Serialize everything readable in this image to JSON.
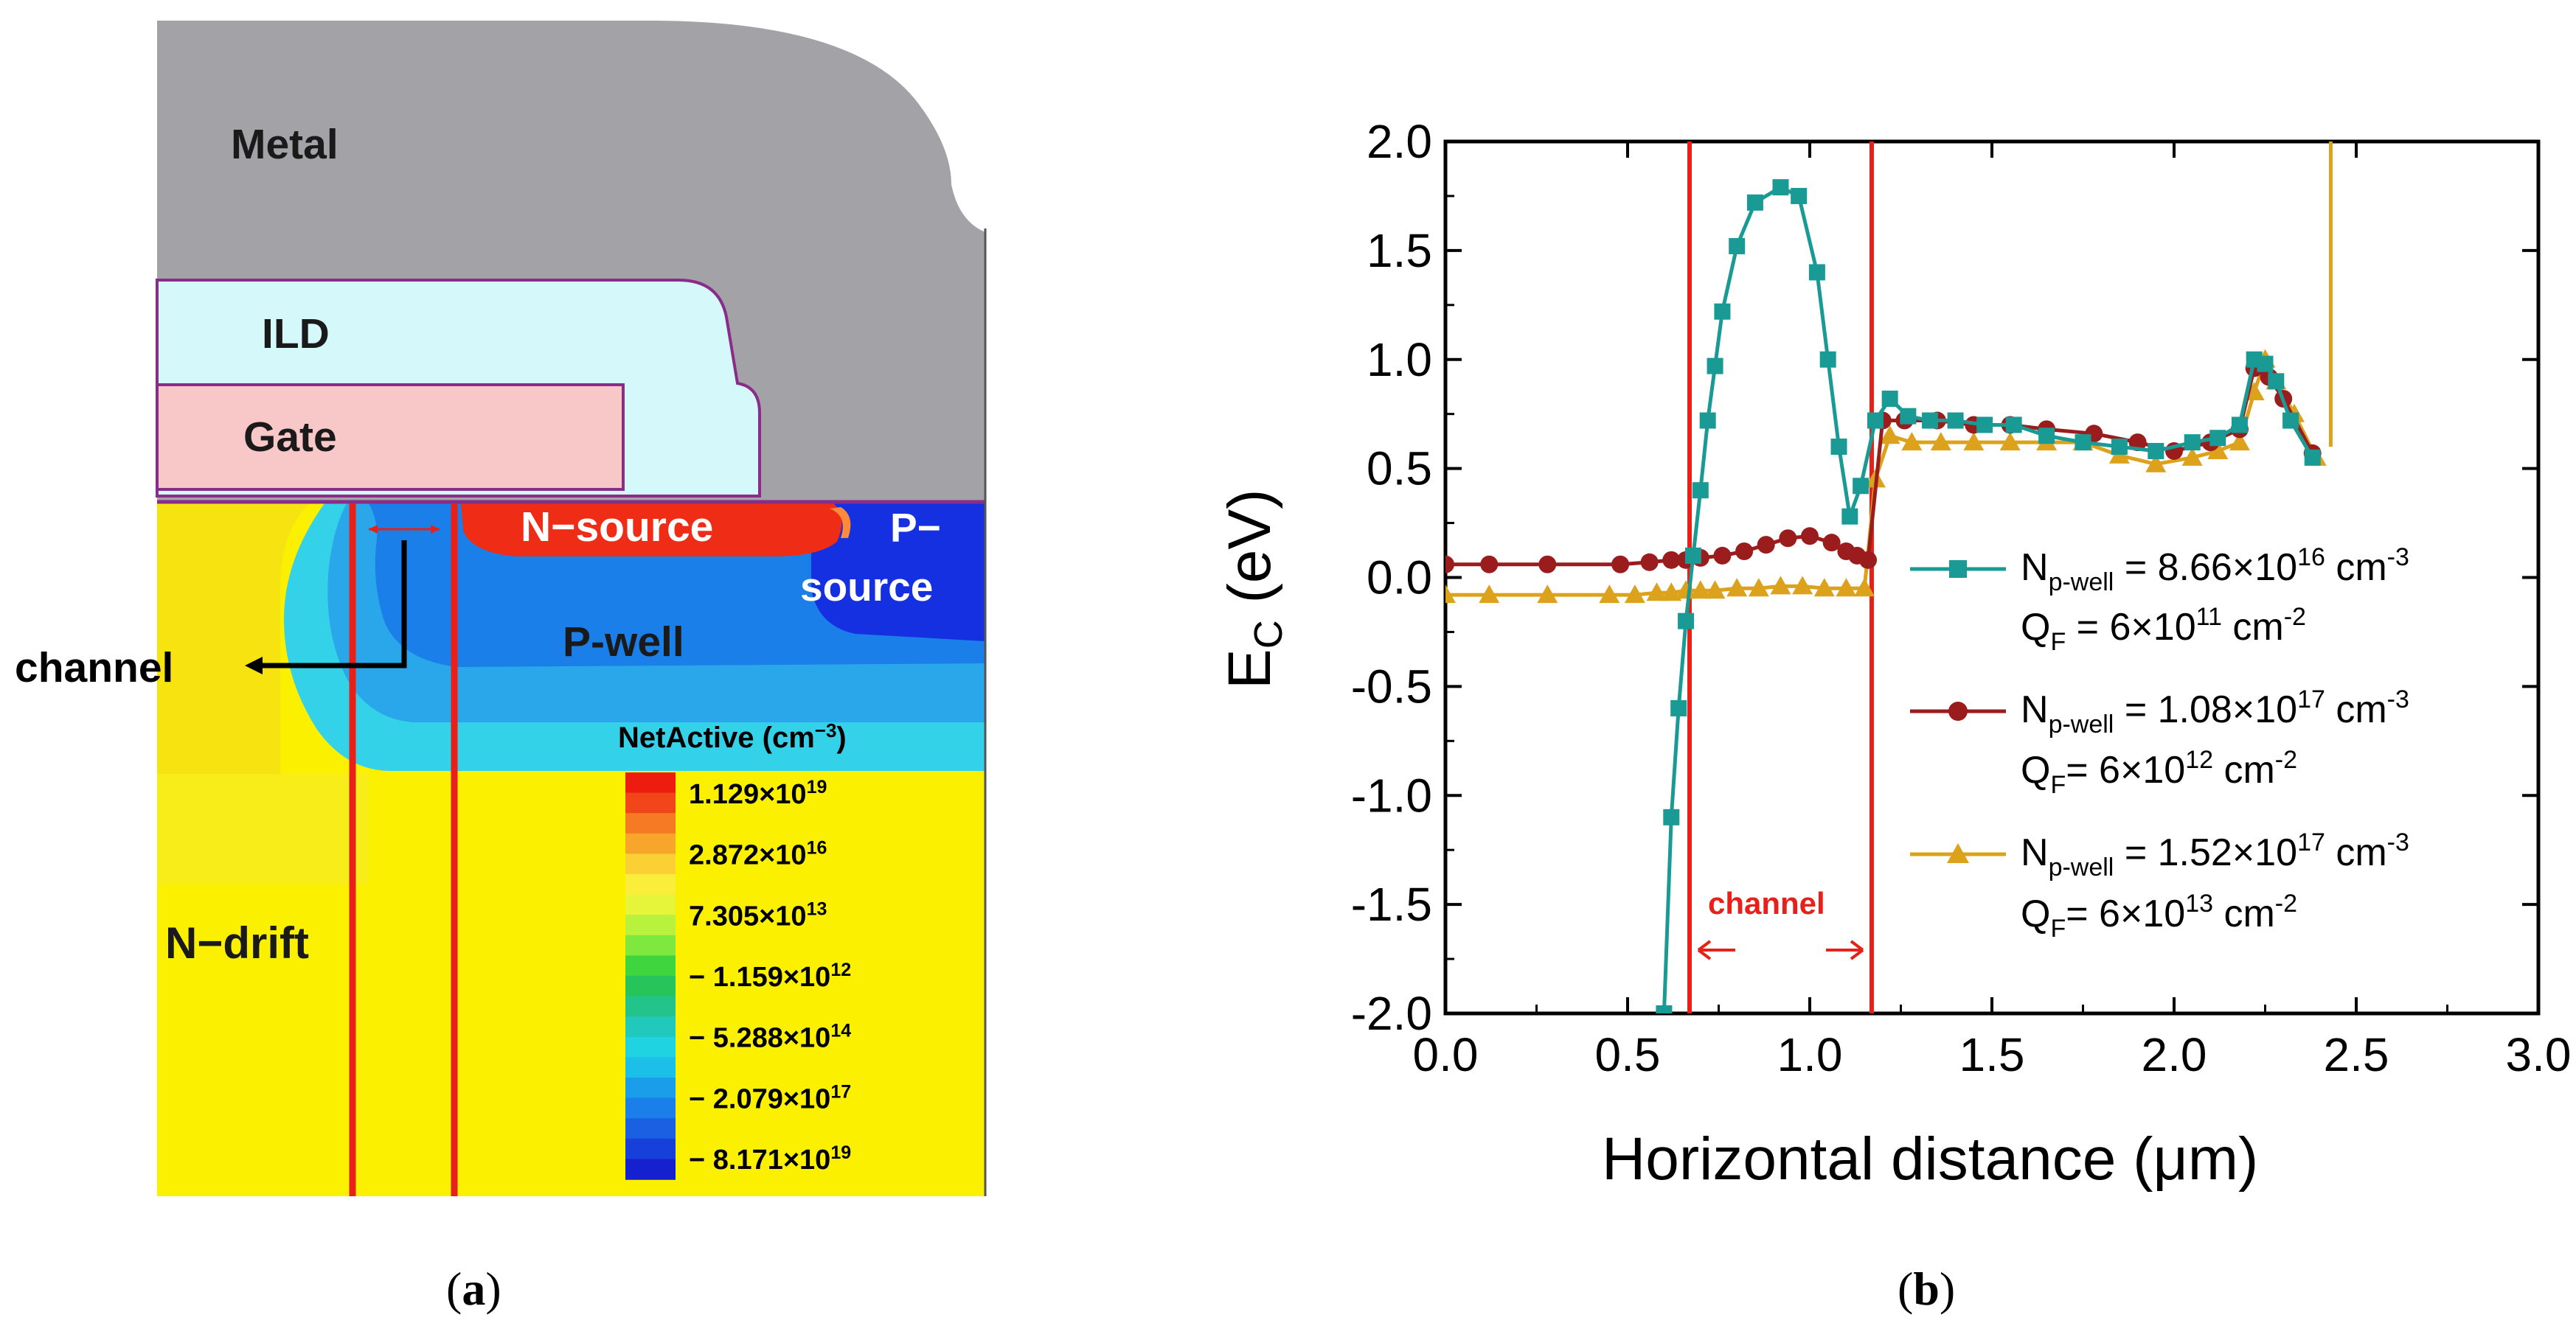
{
  "panel_a": {
    "regions": {
      "metal": "Metal",
      "ild": "ILD",
      "gate": "Gate",
      "n_source": "N−source",
      "p_source_1": "P−",
      "p_source_2": "source",
      "p_well": "P-well",
      "n_drift": "N−drift",
      "channel": "channel"
    },
    "legend_title": "NetActive (cm",
    "legend_title_exp": "−3",
    "legend_title_close": ")",
    "scale": [
      {
        "sign": "",
        "mant": "1.129×10",
        "exp": "19"
      },
      {
        "sign": "",
        "mant": "2.872×10",
        "exp": "16"
      },
      {
        "sign": "",
        "mant": "7.305×10",
        "exp": "13"
      },
      {
        "sign": "−",
        "mant": "1.159×10",
        "exp": "12"
      },
      {
        "sign": "−",
        "mant": "5.288×10",
        "exp": "14"
      },
      {
        "sign": "−",
        "mant": "2.079×10",
        "exp": "17"
      },
      {
        "sign": "−",
        "mant": "8.171×10",
        "exp": "19"
      }
    ],
    "caption_open": "(",
    "caption_letter": "a",
    "caption_close": ")",
    "colors": {
      "metal": "#a3a3a7",
      "ild": "#d5f9fa",
      "gate": "#f8c7c7",
      "drift": "#fbf000",
      "pwell": "#1a7fe8",
      "nsource": "#ef2d16",
      "channel_line": "#e8201a"
    }
  },
  "chart_data": {
    "type": "line",
    "title": "",
    "xlabel": "Horizontal distance (μm)",
    "ylabel_main": "E",
    "ylabel_sub": "C",
    "ylabel_unit": " (eV)",
    "xlim": [
      0.0,
      3.0
    ],
    "ylim": [
      -2.0,
      2.0
    ],
    "xticks": [
      "0.0",
      "0.5",
      "1.0",
      "1.5",
      "2.0",
      "2.5",
      "3.0"
    ],
    "yticks": [
      "2.0",
      "1.5",
      "1.0",
      "0.5",
      "0.0",
      "-0.5",
      "-1.0",
      "-1.5",
      "-2.0"
    ],
    "xtick_values": [
      0.0,
      0.5,
      1.0,
      1.5,
      2.0,
      2.5,
      3.0
    ],
    "ytick_values": [
      2.0,
      1.5,
      1.0,
      0.5,
      0.0,
      -0.5,
      -1.0,
      -1.5,
      -2.0
    ],
    "channel_bounds": [
      0.67,
      1.17
    ],
    "channel_label": "channel",
    "legend_position": "right",
    "series": [
      {
        "legend_n": "N",
        "legend_n_sub": "p-well",
        "legend_n_val": " = 8.66×10",
        "legend_n_exp": "16",
        "legend_n_unit": " cm",
        "legend_n_unit_exp": "-3",
        "legend_q": "Q",
        "legend_q_sub": "F",
        "legend_q_val": " = 6×10",
        "legend_q_exp": "11",
        "legend_q_unit": " cm",
        "legend_q_unit_exp": "-2",
        "color": "#1a9a94",
        "marker": "square",
        "x": [
          0.6,
          0.62,
          0.64,
          0.66,
          0.68,
          0.7,
          0.72,
          0.74,
          0.76,
          0.8,
          0.85,
          0.92,
          0.97,
          1.02,
          1.05,
          1.08,
          1.11,
          1.14,
          1.18,
          1.22,
          1.27,
          1.33,
          1.4,
          1.48,
          1.56,
          1.65,
          1.75,
          1.85,
          1.95,
          2.05,
          2.12,
          2.18,
          2.22,
          2.25,
          2.28,
          2.32,
          2.38
        ],
        "y": [
          -2.0,
          -1.1,
          -0.6,
          -0.2,
          0.1,
          0.4,
          0.72,
          0.97,
          1.22,
          1.52,
          1.72,
          1.79,
          1.75,
          1.4,
          1.0,
          0.6,
          0.28,
          0.42,
          0.72,
          0.82,
          0.74,
          0.72,
          0.72,
          0.7,
          0.7,
          0.65,
          0.62,
          0.6,
          0.58,
          0.62,
          0.64,
          0.7,
          1.0,
          0.98,
          0.9,
          0.72,
          0.55
        ]
      },
      {
        "legend_n": "N",
        "legend_n_sub": "p-well",
        "legend_n_val": " = 1.08×10",
        "legend_n_exp": "17",
        "legend_n_unit": " cm",
        "legend_n_unit_exp": "-3",
        "legend_q": "Q",
        "legend_q_sub": "F",
        "legend_q_val": "= 6×10",
        "legend_q_exp": "12",
        "legend_q_unit": " cm",
        "legend_q_unit_exp": "-2",
        "color": "#9b1c1c",
        "marker": "circle",
        "x": [
          0.0,
          0.12,
          0.28,
          0.48,
          0.56,
          0.62,
          0.66,
          0.7,
          0.76,
          0.82,
          0.88,
          0.94,
          1.0,
          1.06,
          1.1,
          1.13,
          1.16,
          1.2,
          1.26,
          1.35,
          1.45,
          1.55,
          1.65,
          1.78,
          1.9,
          2.0,
          2.1,
          2.18,
          2.22,
          2.26,
          2.3,
          2.38
        ],
        "y": [
          0.06,
          0.06,
          0.06,
          0.06,
          0.07,
          0.08,
          0.08,
          0.09,
          0.1,
          0.12,
          0.15,
          0.18,
          0.19,
          0.16,
          0.12,
          0.1,
          0.08,
          0.72,
          0.72,
          0.72,
          0.7,
          0.7,
          0.68,
          0.66,
          0.62,
          0.58,
          0.62,
          0.68,
          0.96,
          0.92,
          0.82,
          0.57
        ]
      },
      {
        "legend_n": "N",
        "legend_n_sub": "p-well",
        "legend_n_val": " = 1.52×10",
        "legend_n_exp": "17",
        "legend_n_unit": " cm",
        "legend_n_unit_exp": "-3",
        "legend_q": "Q",
        "legend_q_sub": "F",
        "legend_q_val": "= 6×10",
        "legend_q_exp": "13",
        "legend_q_unit": " cm",
        "legend_q_unit_exp": "-2",
        "color": "#dca21c",
        "marker": "triangle",
        "x": [
          0.0,
          0.12,
          0.28,
          0.45,
          0.52,
          0.58,
          0.62,
          0.66,
          0.7,
          0.74,
          0.8,
          0.86,
          0.92,
          0.98,
          1.04,
          1.1,
          1.15,
          1.18,
          1.22,
          1.28,
          1.36,
          1.45,
          1.55,
          1.65,
          1.75,
          1.85,
          1.95,
          2.05,
          2.12,
          2.18,
          2.22,
          2.25,
          2.28,
          2.33,
          2.39
        ],
        "y": [
          -0.08,
          -0.08,
          -0.08,
          -0.08,
          -0.08,
          -0.07,
          -0.07,
          -0.06,
          -0.06,
          -0.06,
          -0.05,
          -0.05,
          -0.04,
          -0.04,
          -0.05,
          -0.05,
          -0.05,
          0.45,
          0.65,
          0.62,
          0.62,
          0.62,
          0.62,
          0.62,
          0.62,
          0.56,
          0.52,
          0.55,
          0.58,
          0.62,
          0.85,
          1.0,
          0.9,
          0.75,
          0.55
        ]
      }
    ],
    "vertical_rise": {
      "x": 2.43,
      "from_y": 0.6,
      "to_y": 2.0
    }
  },
  "panel_b": {
    "caption_open": "(",
    "caption_letter": "b",
    "caption_close": ")"
  }
}
